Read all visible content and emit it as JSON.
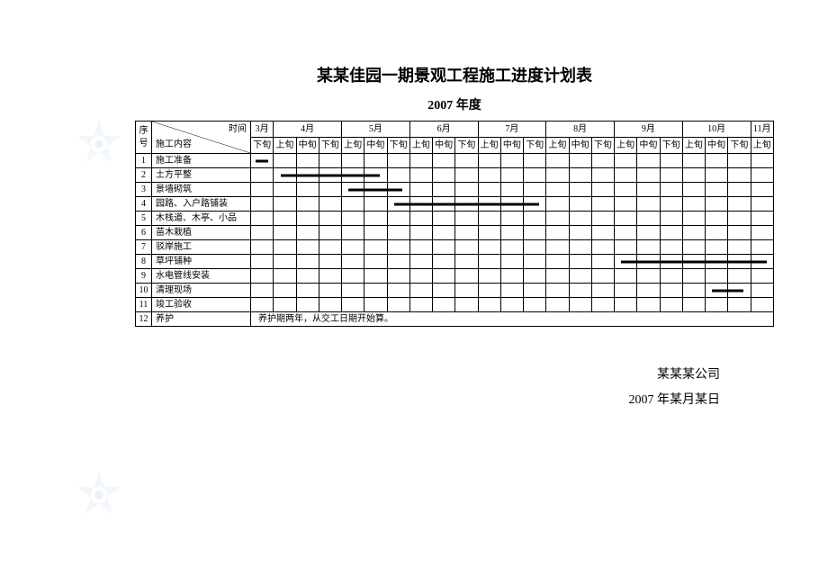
{
  "title": "某某佳园一期景观工程施工进度计划表",
  "subtitle": "2007 年度",
  "header": {
    "seq_label": "序号",
    "time_label": "时间",
    "content_label": "施工内容",
    "months": [
      {
        "label": "3月",
        "periods": [
          "下旬"
        ]
      },
      {
        "label": "4月",
        "periods": [
          "上旬",
          "中旬",
          "下旬"
        ]
      },
      {
        "label": "5月",
        "periods": [
          "上旬",
          "中旬",
          "下旬"
        ]
      },
      {
        "label": "6月",
        "periods": [
          "上旬",
          "中旬",
          "下旬"
        ]
      },
      {
        "label": "7月",
        "periods": [
          "上旬",
          "中旬",
          "下旬"
        ]
      },
      {
        "label": "8月",
        "periods": [
          "上旬",
          "中旬",
          "下旬"
        ]
      },
      {
        "label": "9月",
        "periods": [
          "上旬",
          "中旬",
          "下旬"
        ]
      },
      {
        "label": "10月",
        "periods": [
          "上旬",
          "中旬",
          "下旬"
        ]
      },
      {
        "label": "11月",
        "periods": [
          "上旬"
        ]
      }
    ]
  },
  "tasks": [
    {
      "seq": "1",
      "name": "施工准备",
      "bar": {
        "start": 0,
        "end": 1
      }
    },
    {
      "seq": "2",
      "name": "土方平整",
      "bar": {
        "start": 1,
        "end": 6
      }
    },
    {
      "seq": "3",
      "name": "景墙砌筑",
      "bar": {
        "start": 4,
        "end": 7
      }
    },
    {
      "seq": "4",
      "name": "园路、入户路铺装",
      "bar": {
        "start": 6,
        "end": 13
      }
    },
    {
      "seq": "5",
      "name": "木栈道、木亭、小品",
      "bar": null
    },
    {
      "seq": "6",
      "name": "苗木栽植",
      "bar": null
    },
    {
      "seq": "7",
      "name": "驳岸施工",
      "bar": null
    },
    {
      "seq": "8",
      "name": "草坪铺种",
      "bar": {
        "start": 16,
        "end": 23
      }
    },
    {
      "seq": "9",
      "name": "水电管线安装",
      "bar": null
    },
    {
      "seq": "10",
      "name": "清理现场",
      "bar": {
        "start": 20,
        "end": 22
      }
    },
    {
      "seq": "11",
      "name": "竣工验收",
      "bar": null
    },
    {
      "seq": "12",
      "name": "养护",
      "note": "养护期两年，从交工日期开始算。"
    }
  ],
  "footer": {
    "company": "某某某公司",
    "date": "2007 年某月某日"
  },
  "style": {
    "total_periods": 23,
    "background": "#ffffff",
    "border_color": "#000000",
    "bar_color": "#000000",
    "title_fontsize": 18,
    "subtitle_fontsize": 14,
    "cell_fontsize": 10,
    "watermark_color": "#7ba8d4",
    "watermark_opacity": 0.15
  }
}
